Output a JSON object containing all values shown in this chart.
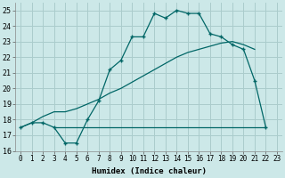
{
  "xlabel": "Humidex (Indice chaleur)",
  "ylabel": "",
  "background_color": "#cce8e8",
  "grid_color": "#aacccc",
  "line_color": "#006666",
  "xlim": [
    -0.5,
    23.5
  ],
  "ylim": [
    16,
    25.5
  ],
  "xticks": [
    0,
    1,
    2,
    3,
    4,
    5,
    6,
    7,
    8,
    9,
    10,
    11,
    12,
    13,
    14,
    15,
    16,
    17,
    18,
    19,
    20,
    21,
    22,
    23
  ],
  "yticks": [
    16,
    17,
    18,
    19,
    20,
    21,
    22,
    23,
    24,
    25
  ],
  "line1_x": [
    0,
    1,
    2,
    3,
    4,
    5,
    6,
    7,
    8,
    9,
    10,
    11,
    12,
    13,
    14,
    15,
    16,
    17,
    18,
    19,
    20,
    21,
    22
  ],
  "line1_y": [
    17.5,
    17.8,
    17.8,
    17.5,
    16.5,
    16.5,
    18.0,
    19.2,
    21.2,
    21.8,
    23.3,
    23.3,
    24.8,
    24.5,
    25.0,
    24.8,
    24.8,
    23.5,
    23.3,
    22.8,
    22.5,
    20.5,
    17.5
  ],
  "line2_x": [
    3,
    4,
    5,
    6,
    7,
    8,
    9,
    10,
    11,
    12,
    13,
    14,
    15,
    16,
    17,
    18,
    19,
    20,
    21,
    22
  ],
  "line2_y": [
    17.5,
    17.5,
    17.5,
    17.5,
    17.5,
    17.5,
    17.5,
    17.5,
    17.5,
    17.5,
    17.5,
    17.5,
    17.5,
    17.5,
    17.5,
    17.5,
    17.5,
    17.5,
    17.5,
    17.5
  ],
  "line3_x": [
    0,
    1,
    2,
    3,
    4,
    5,
    6,
    7,
    8,
    9,
    10,
    11,
    12,
    13,
    14,
    15,
    16,
    17,
    18,
    19,
    20,
    21
  ],
  "line3_y": [
    17.5,
    17.8,
    18.2,
    18.5,
    18.5,
    18.7,
    19.0,
    19.3,
    19.7,
    20.0,
    20.4,
    20.8,
    21.2,
    21.6,
    22.0,
    22.3,
    22.5,
    22.7,
    22.9,
    23.0,
    22.8,
    22.5
  ]
}
